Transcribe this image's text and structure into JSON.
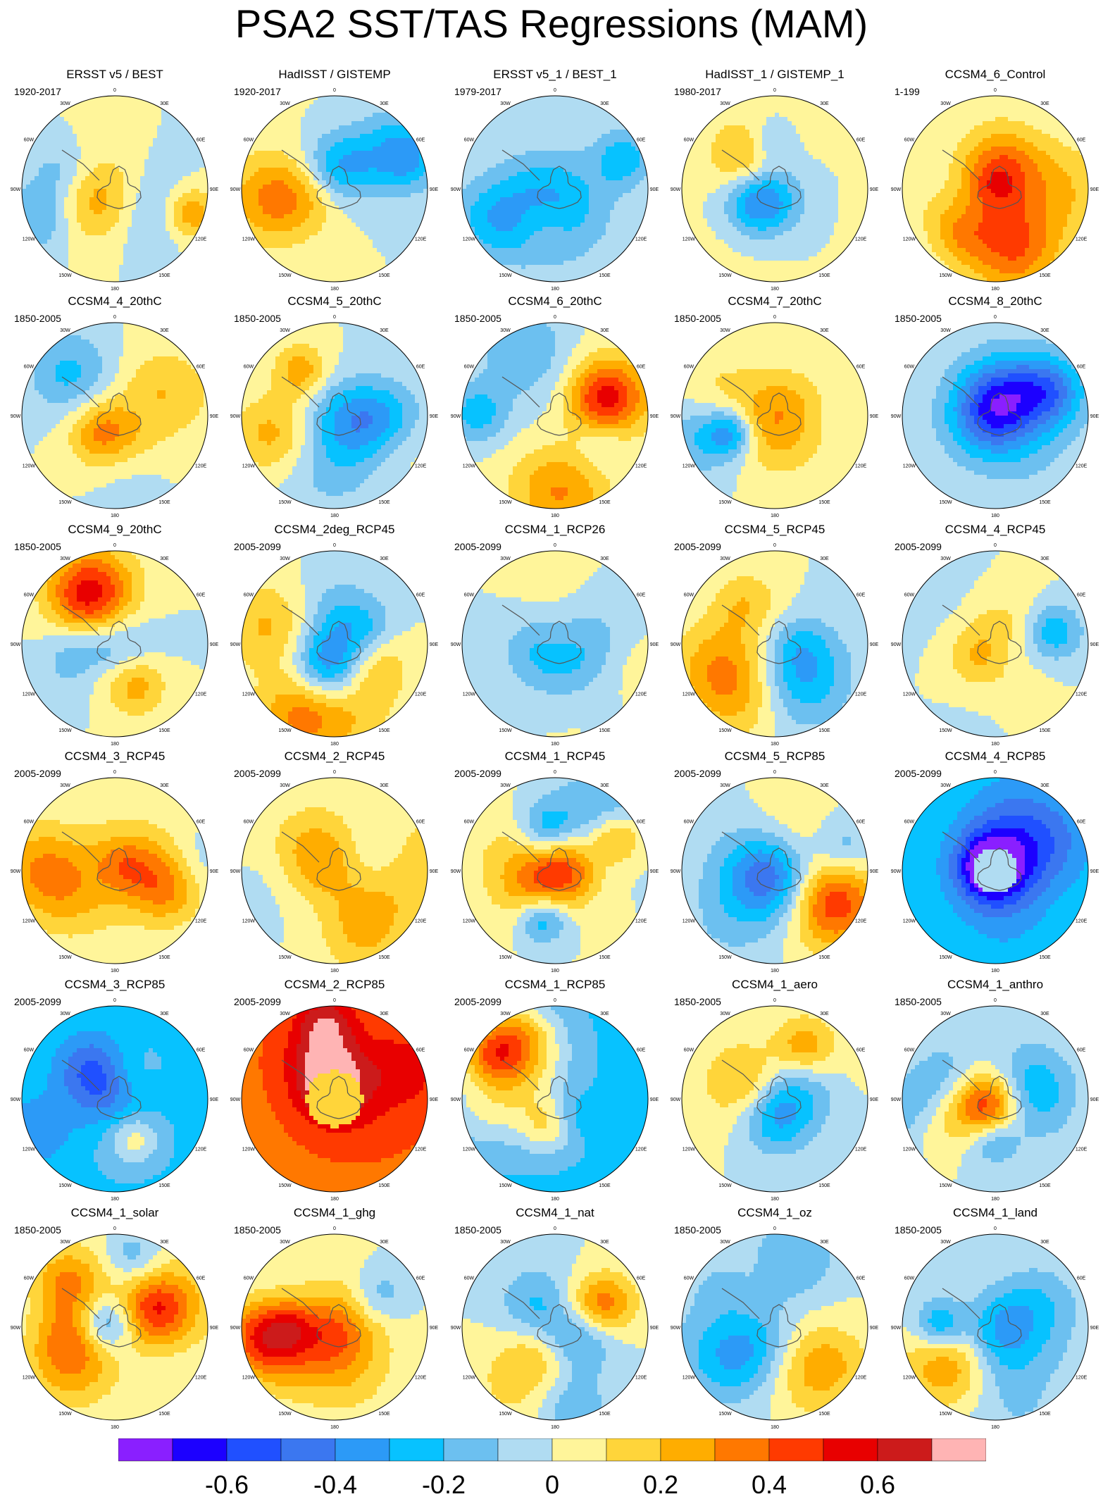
{
  "title": "PSA2 SST/TAS Regressions (MAM)",
  "panels": [
    {
      "title": "ERSST v5 / BEST",
      "years": "1920-2017",
      "pattern": 0
    },
    {
      "title": "HadISST / GISTEMP",
      "years": "1920-2017",
      "pattern": 1
    },
    {
      "title": "ERSST v5_1 / BEST_1",
      "years": "1979-2017",
      "pattern": 2
    },
    {
      "title": "HadISST_1 / GISTEMP_1",
      "years": "1980-2017",
      "pattern": 3
    },
    {
      "title": "CCSM4_6_Control",
      "years": "1-199",
      "pattern": 4
    },
    {
      "title": "CCSM4_4_20thC",
      "years": "1850-2005",
      "pattern": 5
    },
    {
      "title": "CCSM4_5_20thC",
      "years": "1850-2005",
      "pattern": 6
    },
    {
      "title": "CCSM4_6_20thC",
      "years": "1850-2005",
      "pattern": 7
    },
    {
      "title": "CCSM4_7_20thC",
      "years": "1850-2005",
      "pattern": 8
    },
    {
      "title": "CCSM4_8_20thC",
      "years": "1850-2005",
      "pattern": 9
    },
    {
      "title": "CCSM4_9_20thC",
      "years": "1850-2005",
      "pattern": 10
    },
    {
      "title": "CCSM4_2deg_RCP45",
      "years": "2005-2099",
      "pattern": 11
    },
    {
      "title": "CCSM4_1_RCP26",
      "years": "2005-2099",
      "pattern": 12
    },
    {
      "title": "CCSM4_5_RCP45",
      "years": "2005-2099",
      "pattern": 13
    },
    {
      "title": "CCSM4_4_RCP45",
      "years": "2005-2099",
      "pattern": 14
    },
    {
      "title": "CCSM4_3_RCP45",
      "years": "2005-2099",
      "pattern": 15
    },
    {
      "title": "CCSM4_2_RCP45",
      "years": "2005-2099",
      "pattern": 16
    },
    {
      "title": "CCSM4_1_RCP45",
      "years": "2005-2099",
      "pattern": 17
    },
    {
      "title": "CCSM4_5_RCP85",
      "years": "2005-2099",
      "pattern": 18
    },
    {
      "title": "CCSM4_4_RCP85",
      "years": "2005-2099",
      "pattern": 19
    },
    {
      "title": "CCSM4_3_RCP85",
      "years": "2005-2099",
      "pattern": 20
    },
    {
      "title": "CCSM4_2_RCP85",
      "years": "2005-2099",
      "pattern": 21
    },
    {
      "title": "CCSM4_1_RCP85",
      "years": "2005-2099",
      "pattern": 22
    },
    {
      "title": "CCSM4_1_aero",
      "years": "1850-2005",
      "pattern": 23
    },
    {
      "title": "CCSM4_1_anthro",
      "years": "1850-2005",
      "pattern": 24
    },
    {
      "title": "CCSM4_1_solar",
      "years": "1850-2005",
      "pattern": 25
    },
    {
      "title": "CCSM4_1_ghg",
      "years": "1850-2005",
      "pattern": 26
    },
    {
      "title": "CCSM4_1_nat",
      "years": "1850-2005",
      "pattern": 27
    },
    {
      "title": "CCSM4_1_oz",
      "years": "1850-2005",
      "pattern": 28
    },
    {
      "title": "CCSM4_1_land",
      "years": "1850-2005",
      "pattern": 29
    }
  ],
  "map_labels": {
    "lon_0": "0",
    "lon_30e": "30E",
    "lon_60e": "60E",
    "lon_90e": "90E",
    "lon_120e": "120E",
    "lon_150e": "150E",
    "lon_180": "180",
    "lon_150w": "150W",
    "lon_120w": "120W",
    "lon_90w": "90W",
    "lon_60w": "60W",
    "lon_30w": "30W"
  },
  "colorbar": {
    "colors": [
      "#8a1fff",
      "#1c00ff",
      "#2050ff",
      "#3b77f0",
      "#2c9af7",
      "#07c2ff",
      "#6cc0f0",
      "#b0dcf2",
      "#fff59a",
      "#ffd53a",
      "#ffad00",
      "#ff7800",
      "#ff3a00",
      "#e80000",
      "#cc1b1b",
      "#ffb4b4"
    ],
    "levels": [
      -0.7,
      -0.6,
      -0.5,
      -0.4,
      -0.3,
      -0.2,
      -0.1,
      0,
      0.1,
      0.2,
      0.3,
      0.4,
      0.5,
      0.6,
      0.7
    ],
    "tick_labels": [
      "-0.6",
      "-0.4",
      "-0.2",
      "0",
      "0.2",
      "0.4",
      "0.6"
    ]
  }
}
